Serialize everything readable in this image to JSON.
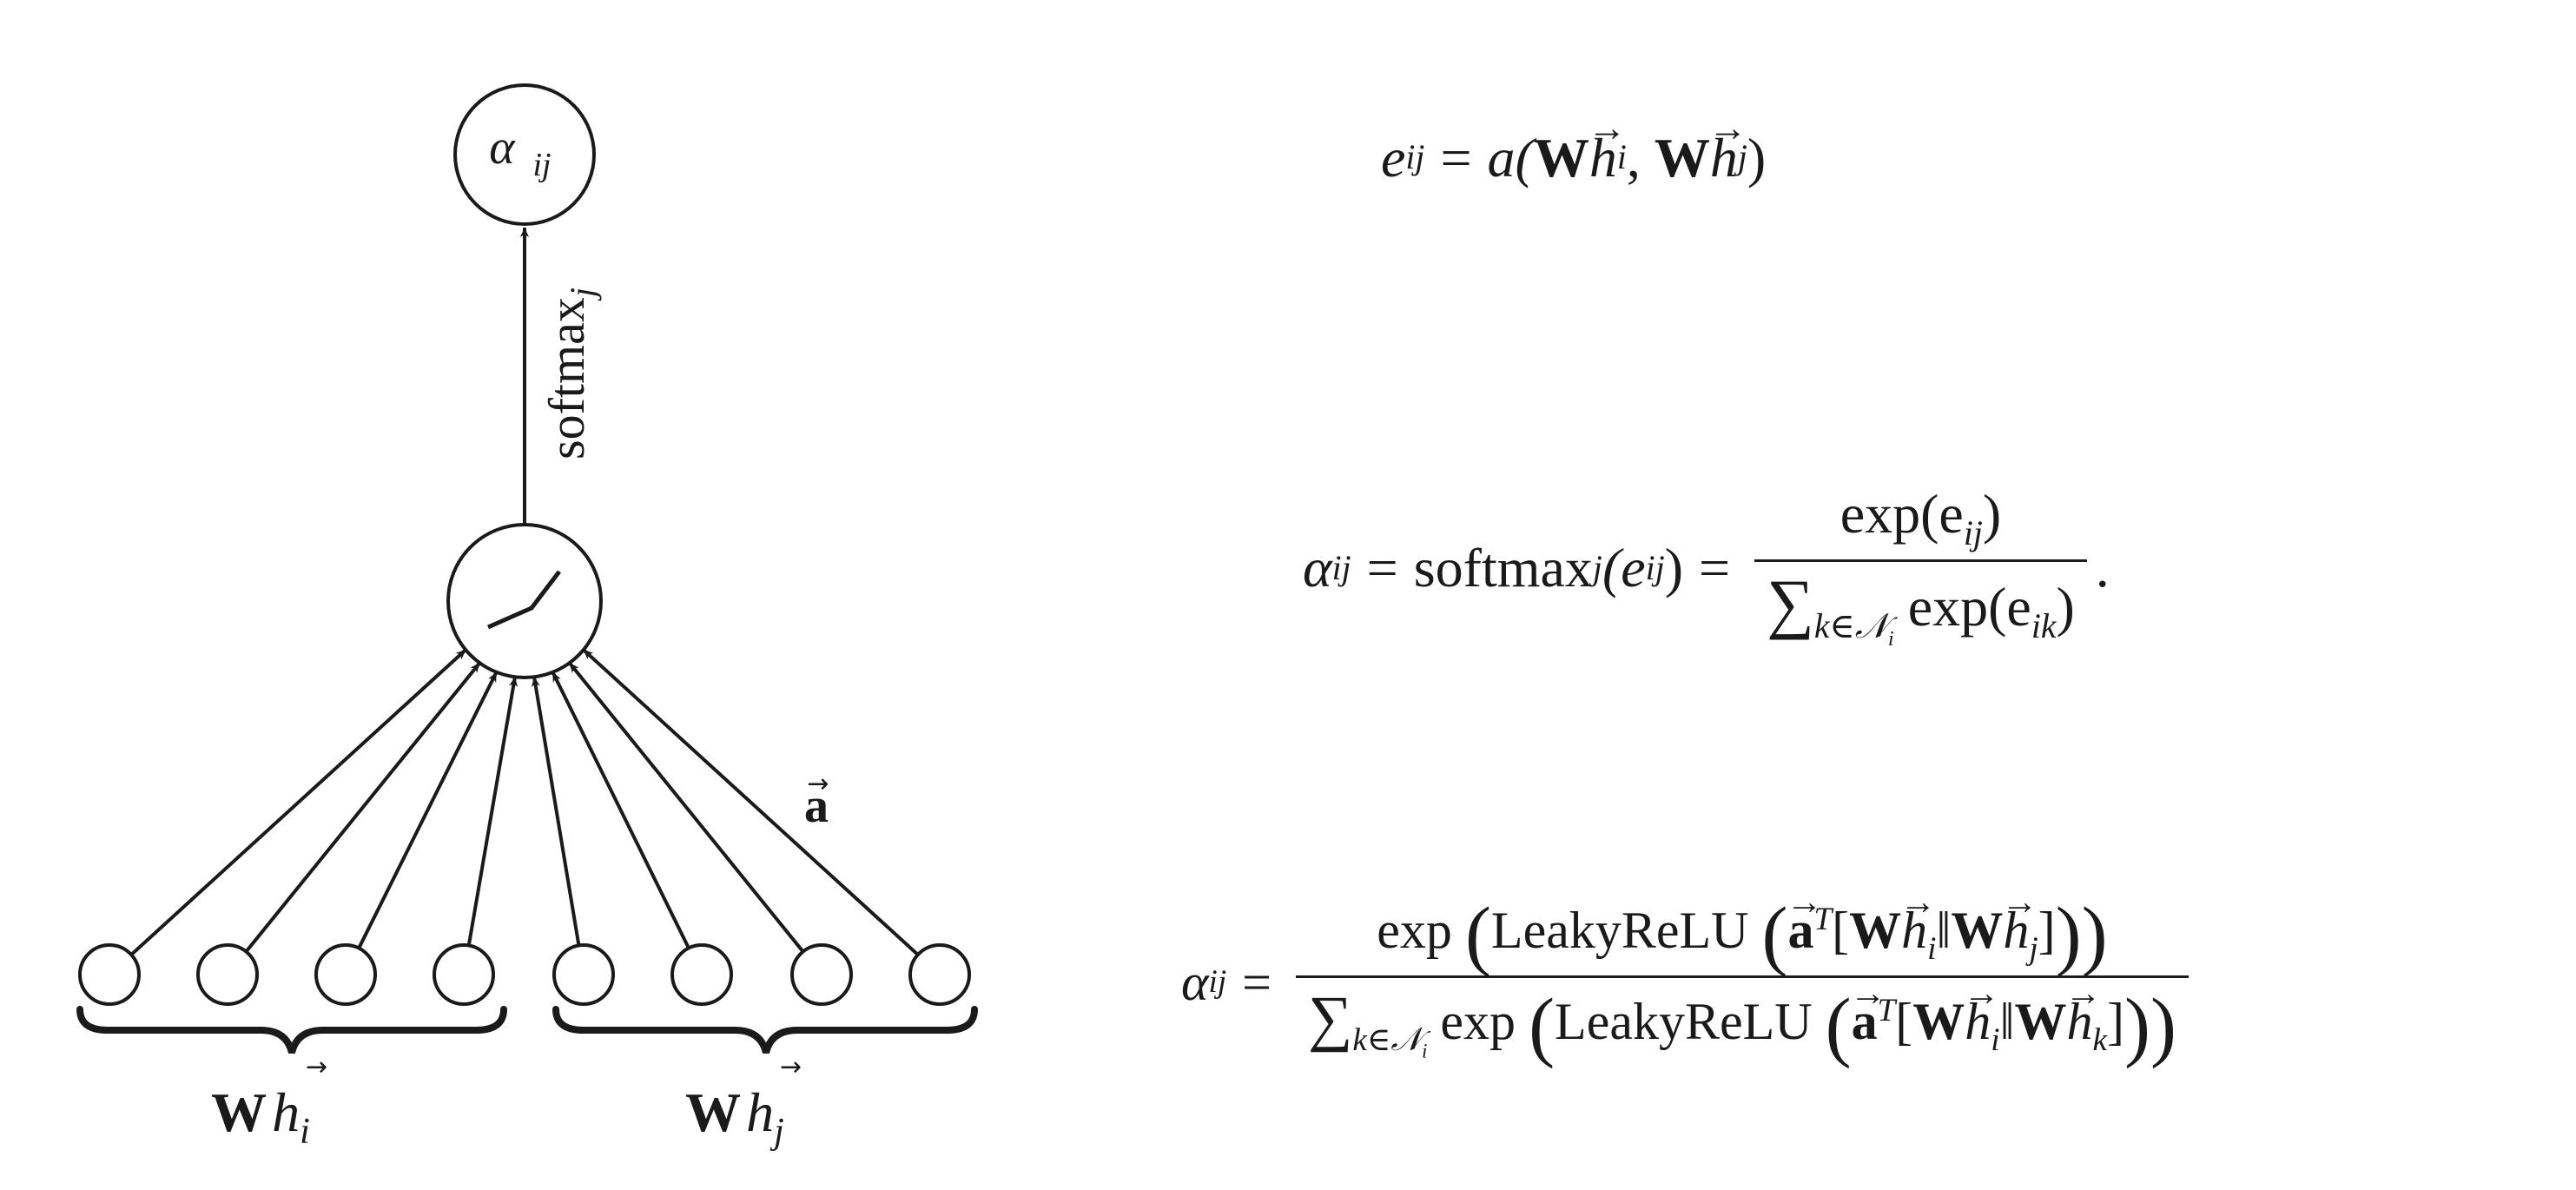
{
  "diagram": {
    "alpha_node_label": "α",
    "alpha_node_sub": "ij",
    "softmax_label": "softmax",
    "softmax_sub": "j",
    "a_vector_label": "a",
    "left_group_W": "W",
    "left_group_h": "h",
    "left_group_sub": "i",
    "right_group_W": "W",
    "right_group_h": "h",
    "right_group_sub": "j",
    "input_node_count": 8
  },
  "equations": {
    "eq1": {
      "lhs": "e",
      "lhs_sub": "ij",
      "equals": "=",
      "fn": "a(",
      "W1": "W",
      "h1": "h",
      "sub1": "i",
      "comma": ", ",
      "W2": "W",
      "h2": "h",
      "sub2": "j",
      "close": ")"
    },
    "eq2": {
      "lhs": "α",
      "lhs_sub": "ij",
      "equals": "=",
      "softmax": "softmax",
      "softmax_sub": "j",
      "arg": "(e",
      "arg_sub": "ij",
      "arg_close": ")",
      "equals2": "=",
      "num": "exp(e",
      "num_sub": "ij",
      "num_close": ")",
      "den_sum": "∑",
      "den_sum_sub": "k∈𝒩",
      "den_sum_subsub": "i",
      "den_exp": " exp(e",
      "den_exp_sub": "ik",
      "den_close": ")",
      "period": "."
    },
    "eq3": {
      "lhs": "α",
      "lhs_sub": "ij",
      "equals": "=",
      "num_exp": "exp",
      "num_fn": "LeakyReLU",
      "num_a": "a",
      "num_T": "T",
      "num_W1": "W",
      "num_h1": "h",
      "num_s1": "i",
      "num_concat": "‖",
      "num_W2": "W",
      "num_h2": "h",
      "num_s2": "j",
      "den_sum": "∑",
      "den_sum_sub": "k∈𝒩",
      "den_sum_subsub": "i",
      "den_exp": "exp",
      "den_fn": "LeakyReLU",
      "den_a": "a",
      "den_T": "T",
      "den_W1": "W",
      "den_h1": "h",
      "den_s1": "i",
      "den_concat": "‖",
      "den_W2": "W",
      "den_h2": "h",
      "den_s2": "k"
    }
  }
}
